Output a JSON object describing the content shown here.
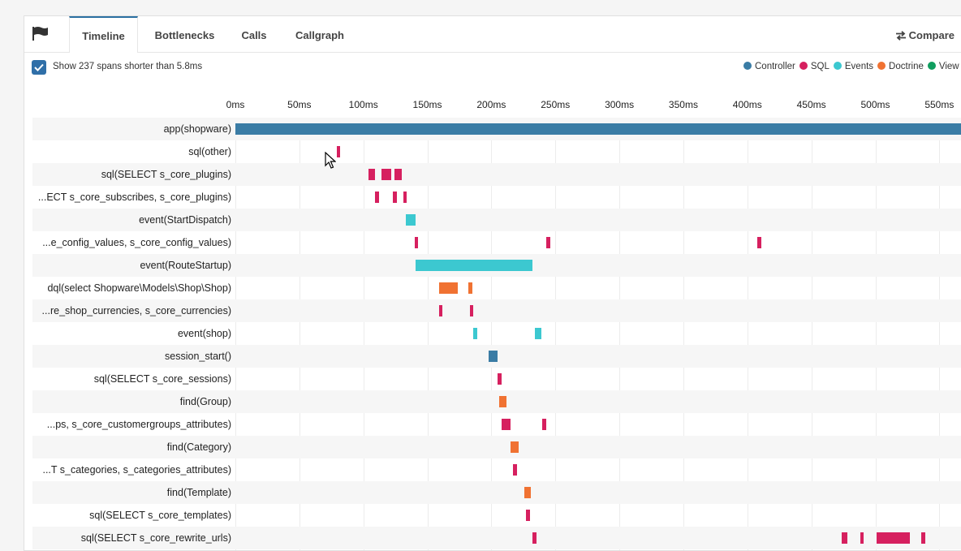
{
  "tabs": [
    {
      "label": "Timeline",
      "active": true
    },
    {
      "label": "Bottlenecks",
      "active": false
    },
    {
      "label": "Calls",
      "active": false
    },
    {
      "label": "Callgraph",
      "active": false
    }
  ],
  "compare_label": "Compare",
  "flag_icon": "flag-icon",
  "option": {
    "checked": true,
    "label": "Show 237 spans shorter than 5.8ms"
  },
  "legend": [
    {
      "name": "Controller",
      "color": "#3a7ca5"
    },
    {
      "name": "SQL",
      "color": "#d6205f"
    },
    {
      "name": "Events",
      "color": "#3cc8d0"
    },
    {
      "name": "Doctrine",
      "color": "#f07232"
    },
    {
      "name": "View",
      "color": "#109e5f"
    }
  ],
  "axis_ticks": [
    "0ms",
    "50ms",
    "100ms",
    "150ms",
    "200ms",
    "250ms",
    "300ms",
    "350ms",
    "400ms",
    "450ms",
    "500ms",
    "550ms"
  ],
  "spans": [
    {
      "label": "app(shopware)",
      "type": "Controller",
      "segments": [
        [
          0,
          575
        ]
      ]
    },
    {
      "label": "sql(other)",
      "type": "SQL",
      "segments": [
        [
          79,
          82
        ]
      ]
    },
    {
      "label": "sql(SELECT s_core_plugins)",
      "type": "SQL",
      "segments": [
        [
          104,
          109
        ],
        [
          114,
          122
        ],
        [
          124,
          130
        ]
      ]
    },
    {
      "label": "...ECT s_core_subscribes, s_core_plugins)",
      "type": "SQL",
      "segments": [
        [
          109,
          112
        ],
        [
          123,
          126
        ],
        [
          131,
          134
        ]
      ]
    },
    {
      "label": "event(StartDispatch)",
      "type": "Events",
      "segments": [
        [
          133,
          141
        ]
      ]
    },
    {
      "label": "...e_config_values, s_core_config_values)",
      "type": "SQL",
      "segments": [
        [
          140,
          143
        ],
        [
          243,
          246
        ],
        [
          408,
          411
        ]
      ]
    },
    {
      "label": "event(RouteStartup)",
      "type": "Events",
      "segments": [
        [
          141,
          232
        ]
      ]
    },
    {
      "label": "dql(select Shopware\\Models\\Shop\\Shop)",
      "type": "Doctrine",
      "segments": [
        [
          159,
          174
        ],
        [
          182,
          185
        ]
      ]
    },
    {
      "label": "...re_shop_currencies, s_core_currencies)",
      "type": "SQL",
      "segments": [
        [
          159,
          162
        ],
        [
          183,
          186
        ]
      ]
    },
    {
      "label": "event(shop)",
      "type": "Events",
      "segments": [
        [
          186,
          189
        ],
        [
          234,
          239
        ]
      ]
    },
    {
      "label": "session_start()",
      "type": "Controller",
      "segments": [
        [
          198,
          205
        ]
      ]
    },
    {
      "label": "sql(SELECT s_core_sessions)",
      "type": "SQL",
      "segments": [
        [
          205,
          208
        ]
      ]
    },
    {
      "label": "find(Group)",
      "type": "Doctrine",
      "segments": [
        [
          206,
          212
        ]
      ]
    },
    {
      "label": "...ps, s_core_customergroups_attributes)",
      "type": "SQL",
      "segments": [
        [
          208,
          215
        ],
        [
          240,
          243
        ]
      ]
    },
    {
      "label": "find(Category)",
      "type": "Doctrine",
      "segments": [
        [
          215,
          221
        ]
      ]
    },
    {
      "label": "...T s_categories, s_categories_attributes)",
      "type": "SQL",
      "segments": [
        [
          217,
          220
        ]
      ]
    },
    {
      "label": "find(Template)",
      "type": "Doctrine",
      "segments": [
        [
          226,
          231
        ]
      ]
    },
    {
      "label": "sql(SELECT s_core_templates)",
      "type": "SQL",
      "segments": [
        [
          227,
          230
        ]
      ]
    },
    {
      "label": "sql(SELECT s_core_rewrite_urls)",
      "type": "SQL",
      "segments": [
        [
          232,
          235
        ],
        [
          474,
          478
        ],
        [
          488,
          491
        ],
        [
          501,
          527
        ],
        [
          536,
          539
        ]
      ]
    }
  ]
}
